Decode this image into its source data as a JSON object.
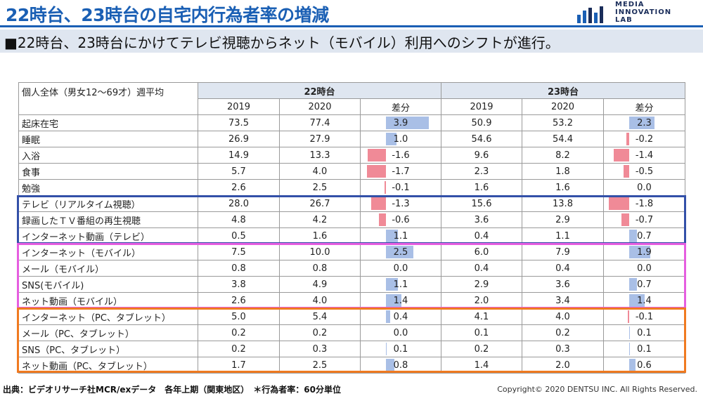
{
  "header": {
    "title": "22時台、23時台の自宅内行為者率の増減",
    "logo_text": [
      "MEDIA",
      "INNOVATION",
      "LAB"
    ]
  },
  "subtitle": "■22時台、23時台にかけてテレビ視聴からネット（モバイル）利用へのシフトが進行。",
  "table": {
    "corner_label": "個人全体（男女12～69才）週平均",
    "group_22": "22時台",
    "group_23": "23時台",
    "year_2019": "2019",
    "year_2020": "2020",
    "diff_label": "差分",
    "rows": [
      {
        "label": "起床在宅",
        "v22_2019": "73.5",
        "v22_2020": "77.4",
        "d22": "3.9",
        "v23_2019": "50.9",
        "v23_2020": "53.2",
        "d23": "2.3"
      },
      {
        "label": "睡眠",
        "v22_2019": "26.9",
        "v22_2020": "27.9",
        "d22": "1.0",
        "v23_2019": "54.6",
        "v23_2020": "54.4",
        "d23": "-0.2"
      },
      {
        "label": "入浴",
        "v22_2019": "14.9",
        "v22_2020": "13.3",
        "d22": "-1.6",
        "v23_2019": "9.6",
        "v23_2020": "8.2",
        "d23": "-1.4"
      },
      {
        "label": "食事",
        "v22_2019": "5.7",
        "v22_2020": "4.0",
        "d22": "-1.7",
        "v23_2019": "2.3",
        "v23_2020": "1.8",
        "d23": "-0.5"
      },
      {
        "label": "勉強",
        "v22_2019": "2.6",
        "v22_2020": "2.5",
        "d22": "-0.1",
        "v23_2019": "1.6",
        "v23_2020": "1.6",
        "d23": "0.0"
      },
      {
        "label": "テレビ（リアルタイム視聴）",
        "v22_2019": "28.0",
        "v22_2020": "26.7",
        "d22": "-1.3",
        "v23_2019": "15.6",
        "v23_2020": "13.8",
        "d23": "-1.8"
      },
      {
        "label": "録画したＴＶ番組の再生視聴",
        "v22_2019": "4.8",
        "v22_2020": "4.2",
        "d22": "-0.6",
        "v23_2019": "3.6",
        "v23_2020": "2.9",
        "d23": "-0.7"
      },
      {
        "label": "インターネット動画（テレビ）",
        "v22_2019": "0.5",
        "v22_2020": "1.6",
        "d22": "1.1",
        "v23_2019": "0.4",
        "v23_2020": "1.1",
        "d23": "0.7"
      },
      {
        "label": "インターネット（モバイル）",
        "v22_2019": "7.5",
        "v22_2020": "10.0",
        "d22": "2.5",
        "v23_2019": "6.0",
        "v23_2020": "7.9",
        "d23": "1.9"
      },
      {
        "label": "メール（モバイル）",
        "v22_2019": "0.8",
        "v22_2020": "0.8",
        "d22": "0.0",
        "v23_2019": "0.4",
        "v23_2020": "0.4",
        "d23": "0.0"
      },
      {
        "label": "SNS(モバイル)",
        "v22_2019": "3.8",
        "v22_2020": "4.9",
        "d22": "1.1",
        "v23_2019": "2.9",
        "v23_2020": "3.6",
        "d23": "0.7"
      },
      {
        "label": "ネット動画（モバイル）",
        "v22_2019": "2.6",
        "v22_2020": "4.0",
        "d22": "1.4",
        "v23_2019": "2.0",
        "v23_2020": "3.4",
        "d23": "1.4"
      },
      {
        "label": "インターネット（PC、タブレット）",
        "v22_2019": "5.0",
        "v22_2020": "5.4",
        "d22": "0.4",
        "v23_2019": "4.1",
        "v23_2020": "4.0",
        "d23": "-0.1"
      },
      {
        "label": "メール（PC、タブレット）",
        "v22_2019": "0.2",
        "v22_2020": "0.2",
        "d22": "0.0",
        "v23_2019": "0.1",
        "v23_2020": "0.2",
        "d23": "0.1"
      },
      {
        "label": "SNS（PC、タブレット）",
        "v22_2019": "0.2",
        "v22_2020": "0.3",
        "d22": "0.1",
        "v23_2019": "0.2",
        "v23_2020": "0.3",
        "d23": "0.1"
      },
      {
        "label": "ネット動画（PC、タブレット）",
        "v22_2019": "1.7",
        "v22_2020": "2.5",
        "d22": "0.8",
        "v23_2019": "1.4",
        "v23_2020": "2.0",
        "d23": "0.6"
      }
    ]
  },
  "footer": {
    "source": "出典：ビデオリサーチ社MCR/exデータ　各年上期（関東地区）　＊行為者率：60分単位",
    "copyright": "Copyright© 2020 DENTSU INC. All Rights Reserved."
  },
  "colors": {
    "title": "#1a5fb4",
    "positive_bar": "#a9bfe6",
    "negative_bar": "#f08a97",
    "box_tv": "#3350a8",
    "box_mobile": "#e65ee0",
    "box_pc": "#f07a20"
  }
}
